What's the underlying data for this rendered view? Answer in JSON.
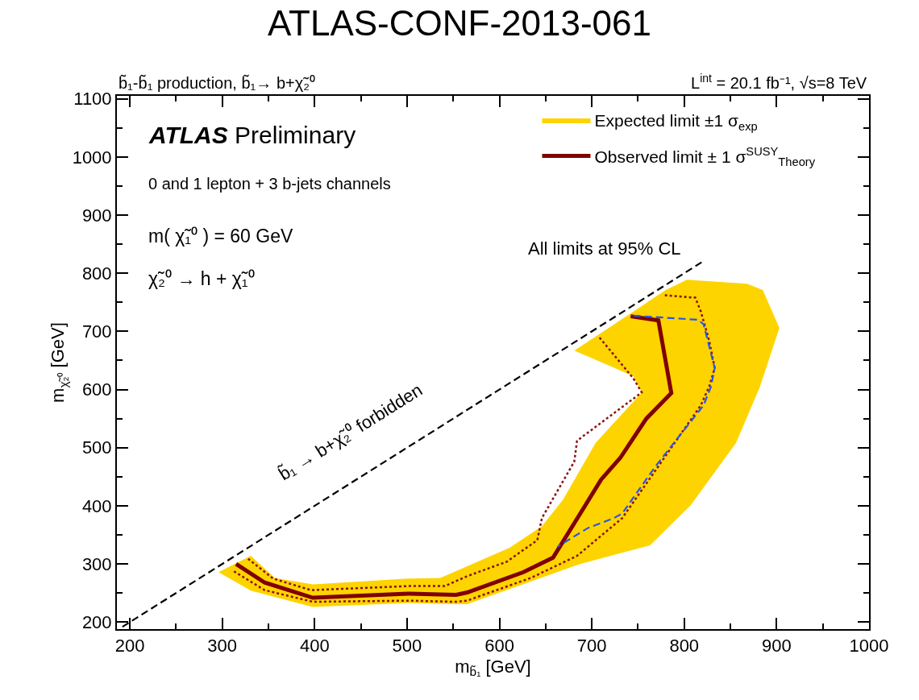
{
  "chart_data": {
    "type": "line",
    "title": "ATLAS-CONF-2013-061",
    "subtitle": "b̃₁-b̃₁ production, b̃₁→ b+χ̃₂⁰",
    "xlabel": "m$_{b̃₁}$ [GeV]",
    "ylabel": "m$_{χ̃₂⁰}$ [GeV]",
    "xlim": [
      186,
      1000
    ],
    "ylim": [
      188,
      1105
    ],
    "xticks": [
      200,
      300,
      400,
      500,
      600,
      700,
      800,
      900,
      1000
    ],
    "yticks": [
      200,
      300,
      400,
      500,
      600,
      700,
      800,
      900,
      1000,
      1100
    ],
    "legend": "top right",
    "marker": "none",
    "series": [
      {
        "name": "Expected limit ±1 σ$_{exp}$",
        "type": "area",
        "color": "#fdd400",
        "x": [
          296,
          331,
          398,
          501,
          550,
          565,
          687,
          763,
          807,
          856,
          882,
          903,
          885,
          868,
          803,
          780,
          745,
          681,
          745,
          754,
          704,
          669,
          646,
          611,
          565,
          536,
          501,
          398,
          357,
          331,
          296
        ],
        "values": [
          286,
          254,
          226,
          233,
          231,
          231,
          300,
          332,
          401,
          508,
          605,
          706,
          771,
          782,
          789,
          771,
          734,
          667,
          623,
          595,
          508,
          411,
          365,
          328,
          296,
          276,
          275,
          265,
          276,
          314,
          286
        ]
      },
      {
        "name": "Observed limit ± 1 σ$^{SUSY}$$_{Theory}$",
        "color": "#800000",
        "line_style": "solid",
        "x": [
          315,
          346,
          398,
          501,
          553,
          565,
          626,
          658,
          693,
          710,
          731,
          759,
          786,
          772,
          742
        ],
        "values": [
          300,
          268,
          242,
          249,
          247,
          251,
          286,
          311,
          401,
          445,
          483,
          550,
          594,
          719,
          726
        ]
      },
      {
        "color": "#8b1010",
        "line_style": "dotted",
        "x": [
          328,
          355,
          396,
          501,
          541,
          565,
          608,
          641,
          646,
          681,
          684,
          754,
          745,
          707
        ],
        "values": [
          309,
          275,
          255,
          262,
          262,
          279,
          304,
          341,
          379,
          476,
          512,
          595,
          619,
          692
        ]
      },
      {
        "color": "#8b1010",
        "line_style": "dotted",
        "x": [
          779,
          812,
          818,
          827,
          833,
          827,
          818,
          733,
          684,
          634,
          565,
          553,
          501,
          398,
          346,
          311
        ],
        "values": [
          762,
          758,
          734,
          684,
          637,
          605,
          573,
          379,
          314,
          276,
          237,
          235,
          237,
          235,
          255,
          289
        ]
      },
      {
        "color": "#2a55e8",
        "line_style": "dashed",
        "x": [
          745,
          815,
          821,
          833,
          829,
          821,
          768,
          733,
          724,
          696,
          663
        ],
        "values": [
          727,
          720,
          712,
          637,
          605,
          573,
          466,
          387,
          379,
          362,
          330
        ]
      },
      {
        "color": "#000000",
        "line_style": "dashed",
        "x": [
          192,
          820
        ],
        "values": [
          192,
          820
        ]
      }
    ],
    "annotations": [
      "L$^{int}$ = 20.1 fb⁻¹, √s=8 TeV",
      "ATLAS Preliminary",
      "0 and 1 lepton + 3 b-jets channels",
      "m( χ̃₁⁰ ) = 60 GeV",
      "χ̃₂⁰ → h + χ̃₁⁰",
      "All limits at 95% CL",
      "b̃₁ → b+χ̃₂⁰ forbidden"
    ]
  }
}
